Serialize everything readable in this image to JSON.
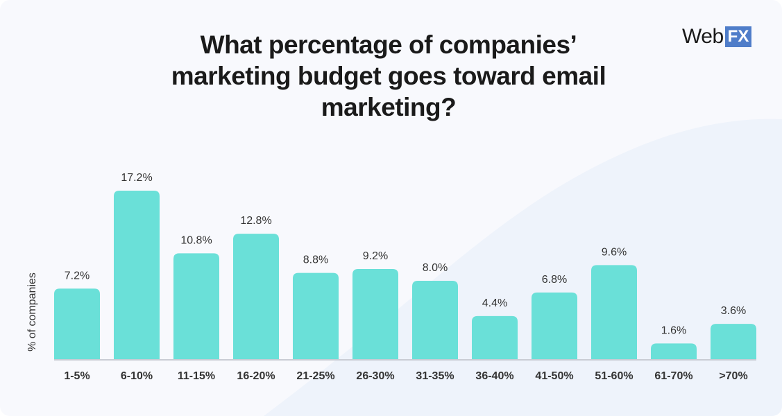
{
  "brand": {
    "logo_web": "Web",
    "logo_fx": "FX",
    "accent": "#4f7dc9"
  },
  "chart_data": {
    "type": "bar",
    "title": "What percentage of companies’ marketing budget goes toward email marketing?",
    "xlabel": "",
    "ylabel": "% of companies",
    "categories": [
      "1-5%",
      "6-10%",
      "11-15%",
      "16-20%",
      "21-25%",
      "26-30%",
      "31-35%",
      "36-40%",
      "41-50%",
      "51-60%",
      "61-70%",
      ">70%"
    ],
    "values": [
      7.2,
      17.2,
      10.8,
      12.8,
      8.8,
      9.2,
      8.0,
      4.4,
      6.8,
      9.6,
      1.6,
      3.6
    ],
    "data_labels": [
      "7.2%",
      "17.2%",
      "10.8%",
      "12.8%",
      "8.8%",
      "9.2%",
      "8.0%",
      "4.4%",
      "6.8%",
      "9.6%",
      "1.6%",
      "3.6%"
    ],
    "ylim": [
      0,
      17.2
    ],
    "grid": false,
    "bar_color": "#6ae0d8"
  }
}
